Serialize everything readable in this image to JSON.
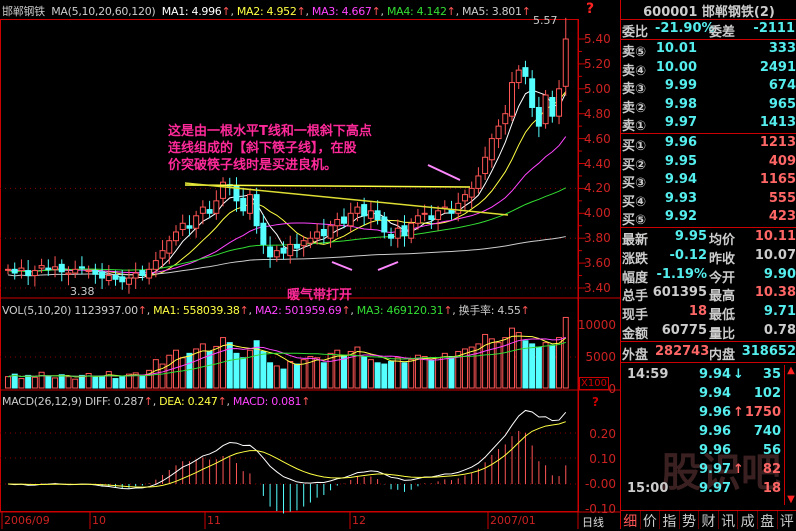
{
  "main": {
    "stock_name": "邯郸钢铁",
    "ma_label": "MA(5,10,20,60,120)",
    "ma": [
      {
        "label": "MA1: 4.996",
        "color": "#ffffff"
      },
      {
        "label": "MA2: 4.952",
        "color": "#ffff44"
      },
      {
        "label": "MA3: 4.667",
        "color": "#ff44ff"
      },
      {
        "label": "MA4: 4.142",
        "color": "#33dd33"
      },
      {
        "label": "MA5: 3.801",
        "color": "#cccccc"
      }
    ],
    "high_label": "5.57",
    "low_label": "3.38",
    "help": "?",
    "y_ticks": [
      "5.40",
      "5.20",
      "5.00",
      "4.80",
      "4.60",
      "4.40",
      "4.20",
      "4.00",
      "3.80",
      "3.60",
      "3.40"
    ],
    "annotation": "这是由一根水平T线和一根斜下高点连线组成的【斜下筷子线】，在股价突破筷子线时是买进良机。",
    "annotation_lines": [
      "这是由一根水平T线和一根斜下高点",
      "连线组成的【斜下筷子线】，在股",
      "价突破筷子线时是买进良机。"
    ],
    "annotation2": "暖气带打开"
  },
  "chart_data": {
    "type": "candlestick",
    "period": "日线",
    "close": [
      3.55,
      3.52,
      3.56,
      3.5,
      3.54,
      3.58,
      3.55,
      3.57,
      3.53,
      3.52,
      3.55,
      3.56,
      3.54,
      3.51,
      3.48,
      3.5,
      3.47,
      3.45,
      3.48,
      3.52,
      3.5,
      3.55,
      3.62,
      3.7,
      3.78,
      3.85,
      3.92,
      3.88,
      3.98,
      4.05,
      4.0,
      4.1,
      4.25,
      4.22,
      4.1,
      4.02,
      4.15,
      3.9,
      3.75,
      3.65,
      3.7,
      3.68,
      3.75,
      3.72,
      3.78,
      3.8,
      3.85,
      3.82,
      3.9,
      3.95,
      3.92,
      4.0,
      4.05,
      3.98,
      4.02,
      3.95,
      3.85,
      3.8,
      3.88,
      3.82,
      3.92,
      3.98,
      4.0,
      3.95,
      4.02,
      4.05,
      4.0,
      4.08,
      4.15,
      4.2,
      4.3,
      4.45,
      4.6,
      4.7,
      4.8,
      5.05,
      5.15,
      5.1,
      4.85,
      4.7,
      4.95,
      4.78,
      5.0,
      5.4
    ],
    "volume": [
      18,
      22,
      15,
      20,
      17,
      25,
      19,
      16,
      21,
      18,
      14,
      20,
      23,
      17,
      19,
      26,
      15,
      18,
      22,
      24,
      20,
      28,
      45,
      38,
      52,
      60,
      48,
      55,
      62,
      70,
      58,
      66,
      80,
      72,
      55,
      48,
      60,
      75,
      58,
      40,
      35,
      30,
      42,
      38,
      45,
      50,
      48,
      40,
      55,
      60,
      52,
      58,
      65,
      50,
      45,
      40,
      38,
      42,
      48,
      40,
      45,
      52,
      50,
      44,
      48,
      55,
      50,
      58,
      62,
      65,
      70,
      85,
      78,
      72,
      80,
      95,
      88,
      75,
      70,
      65,
      72,
      68,
      80,
      112
    ],
    "y_range": [
      3.38,
      5.57
    ]
  },
  "vol": {
    "label": "VOL(5,10,20)",
    "value": "1123937.00",
    "ma1": "MA1: 558039.38",
    "ma2": "MA2: 501959.69",
    "ma3": "MA3: 469120.31",
    "turnover": "换手率: 4.55",
    "ticks": [
      "10000",
      "5000",
      "0"
    ],
    "unit": "X100"
  },
  "macd": {
    "label": "MACD(26,12,9)",
    "diff": "DIFF: 0.287",
    "dea": "DEA: 0.247",
    "macd": "MACD: 0.081",
    "ticks": [
      "0.20",
      "0.10",
      "-0.00",
      "-0.10"
    ],
    "help": "?"
  },
  "dates": [
    "2006/09",
    "10",
    "11",
    "12",
    "2007/01"
  ],
  "period": "日线",
  "panel": {
    "title": "600001 邯郸钢铁(2)",
    "weibi_label": "委比",
    "weibi": "-21.90%",
    "weicha_label": "委差",
    "weicha": "-2111",
    "sells": [
      {
        "l": "卖⑤",
        "p": "10.01",
        "v": "333"
      },
      {
        "l": "卖④",
        "p": "10.00",
        "v": "2491"
      },
      {
        "l": "卖③",
        "p": "9.99",
        "v": "674"
      },
      {
        "l": "卖②",
        "p": "9.98",
        "v": "965"
      },
      {
        "l": "卖①",
        "p": "9.97",
        "v": "1413"
      }
    ],
    "buys": [
      {
        "l": "买①",
        "p": "9.96",
        "v": "1213"
      },
      {
        "l": "买②",
        "p": "9.95",
        "v": "409"
      },
      {
        "l": "买③",
        "p": "9.94",
        "v": "1165"
      },
      {
        "l": "买④",
        "p": "9.93",
        "v": "555"
      },
      {
        "l": "买⑤",
        "p": "9.92",
        "v": "423"
      }
    ],
    "stats": [
      {
        "a": "最新",
        "b": "9.95",
        "bc": "cy",
        "c": "均价",
        "d": "10.11",
        "dc": "rd"
      },
      {
        "a": "涨跌",
        "b": "-0.12",
        "bc": "cy",
        "c": "昨收",
        "d": "10.07",
        "dc": "gy"
      },
      {
        "a": "幅度",
        "b": "-1.19%",
        "bc": "cy",
        "c": "今开",
        "d": "9.90",
        "dc": "cy"
      },
      {
        "a": "总手",
        "b": "601395",
        "bc": "gy",
        "c": "最高",
        "d": "10.38",
        "dc": "rd"
      },
      {
        "a": "现手",
        "b": "18",
        "bc": "rd",
        "c": "最低",
        "d": "9.71",
        "dc": "cy"
      },
      {
        "a": "金额",
        "b": "60775",
        "bc": "gy",
        "c": "量比",
        "d": "0.78",
        "dc": "gy"
      }
    ],
    "outer_label": "外盘",
    "outer": "282743",
    "inner_label": "内盘",
    "inner": "318652",
    "ticks": [
      {
        "t": "14:59",
        "p": "9.94",
        "arrow": "↓",
        "ac": "cy",
        "v": "35",
        "vc": "cy"
      },
      {
        "t": "",
        "p": "9.94",
        "arrow": "",
        "v": "102",
        "vc": "cy"
      },
      {
        "t": "",
        "p": "9.96",
        "arrow": "↑",
        "ac": "rd",
        "v": "1750",
        "vc": "rd"
      },
      {
        "t": "",
        "p": "9.96",
        "arrow": "",
        "v": "740",
        "vc": "cy"
      },
      {
        "t": "",
        "p": "9.96",
        "arrow": "",
        "v": "56",
        "vc": "cy"
      },
      {
        "t": "",
        "p": "9.97",
        "arrow": "↑",
        "ac": "rd",
        "v": "82",
        "vc": "rd"
      },
      {
        "t": "15:00",
        "p": "9.97",
        "arrow": "",
        "v": "18",
        "vc": "rd"
      }
    ],
    "tabs": [
      "细",
      "价",
      "指",
      "势",
      "财",
      "讯",
      "成",
      "盘",
      "评"
    ],
    "watermark": "股识吧"
  }
}
